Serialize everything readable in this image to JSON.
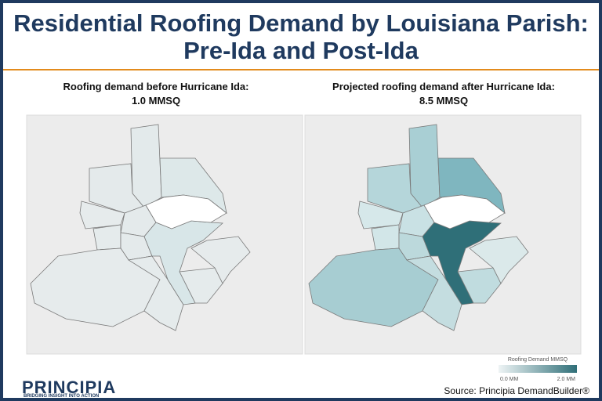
{
  "header": {
    "title": "Residential Roofing Demand by Louisiana Parish: Pre-Ida and Post-Ida"
  },
  "panels": [
    {
      "title_line1": "Roofing demand before Hurricane Ida:",
      "title_line2": "1.0 MMSQ"
    },
    {
      "title_line1": "Projected roofing demand after Hurricane Ida:",
      "title_line2": "8.5 MMSQ"
    }
  ],
  "legend": {
    "title": "Roofing Demand MMSQ",
    "min_label": "0.0 MM",
    "max_label": "2.0 MM"
  },
  "footer": {
    "source": "Source: Principia DemandBuilder®",
    "logo": "PRINCIPIA",
    "tagline": "BRIDGING INSIGHT INTO ACTION"
  }
}
